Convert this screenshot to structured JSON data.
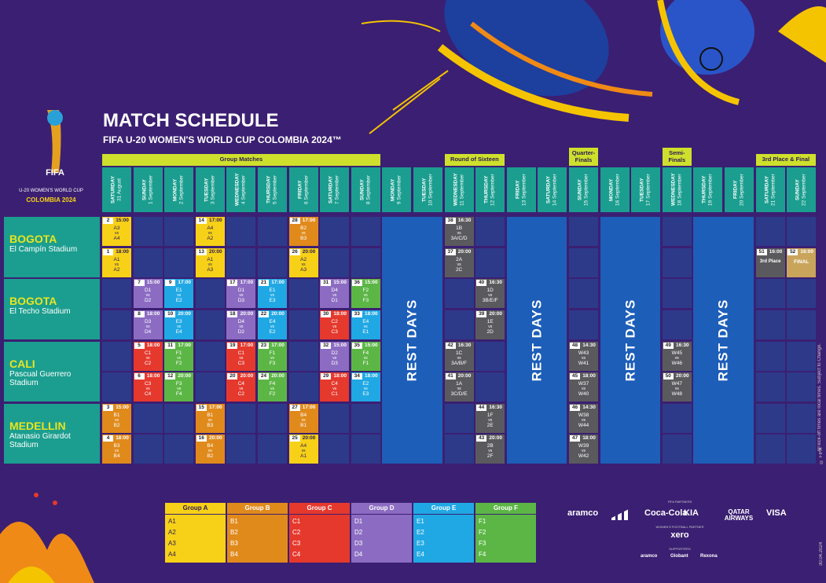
{
  "logo": {
    "brand": "FIFA",
    "line1": "U-20 WOMEN'S WORLD CUP",
    "line2": "COLOMBIA 2024"
  },
  "header": {
    "title": "MATCH SCHEDULE",
    "subtitle": "FIFA U-20 WOMEN'S WORLD CUP COLOMBIA 2024™"
  },
  "phases": [
    "Group Matches",
    "Round of Sixteen",
    "Quarter-Finals",
    "Semi-Finals",
    "3rd Place & Final"
  ],
  "venues": [
    {
      "city": "BOGOTA",
      "stadium": "El Campín Stadium"
    },
    {
      "city": "BOGOTA",
      "stadium": "El Techo Stadium"
    },
    {
      "city": "CALI",
      "stadium": "Pascual Guerrero Stadium"
    },
    {
      "city": "MEDELLIN",
      "stadium": "Atanasio Girardot Stadium"
    }
  ],
  "vs": "vs",
  "rest_label": "REST DAYS",
  "days": [
    {
      "weekday": "SATURDAY",
      "date": "31 August",
      "slots": [
        {
          "no": "2",
          "time": "15:00",
          "home": "A3",
          "away": "A4",
          "color": "#f7d117"
        },
        {
          "no": "1",
          "time": "18:00",
          "home": "A1",
          "away": "A2",
          "color": "#f7d117"
        },
        null,
        null,
        null,
        null,
        {
          "no": "3",
          "time": "15:00",
          "home": "B1",
          "away": "B2",
          "color": "#e08a1c"
        },
        {
          "no": "4",
          "time": "18:00",
          "home": "B3",
          "away": "B4",
          "color": "#e08a1c"
        }
      ]
    },
    {
      "weekday": "SUNDAY",
      "date": "1 September",
      "slots": [
        null,
        null,
        {
          "no": "7",
          "time": "15:00",
          "home": "D1",
          "away": "D2",
          "color": "#8c6cc2"
        },
        {
          "no": "8",
          "time": "18:00",
          "home": "D3",
          "away": "D4",
          "color": "#8c6cc2"
        },
        {
          "no": "5",
          "time": "18:00",
          "home": "C1",
          "away": "C2",
          "color": "#e5392d"
        },
        {
          "no": "6",
          "time": "18:00",
          "home": "C3",
          "away": "C4",
          "color": "#e5392d"
        },
        null,
        null
      ]
    },
    {
      "weekday": "MONDAY",
      "date": "2 September",
      "slots": [
        null,
        null,
        {
          "no": "9",
          "time": "17:00",
          "home": "E1",
          "away": "E2",
          "color": "#20a8e4"
        },
        {
          "no": "10",
          "time": "20:00",
          "home": "E3",
          "away": "E4",
          "color": "#20a8e4"
        },
        {
          "no": "11",
          "time": "17:00",
          "home": "F1",
          "away": "F2",
          "color": "#5cb646"
        },
        {
          "no": "12",
          "time": "20:00",
          "home": "F3",
          "away": "F4",
          "color": "#5cb646"
        },
        null,
        null
      ]
    },
    {
      "weekday": "TUESDAY",
      "date": "3 September",
      "slots": [
        {
          "no": "14",
          "time": "17:00",
          "home": "A4",
          "away": "A2",
          "color": "#f7d117"
        },
        {
          "no": "13",
          "time": "20:00",
          "home": "A1",
          "away": "A3",
          "color": "#f7d117"
        },
        null,
        null,
        null,
        null,
        {
          "no": "15",
          "time": "17:00",
          "home": "B1",
          "away": "B3",
          "color": "#e08a1c"
        },
        {
          "no": "16",
          "time": "20:00",
          "home": "B4",
          "away": "B2",
          "color": "#e08a1c"
        }
      ]
    },
    {
      "weekday": "WEDNESDAY",
      "date": "4 September",
      "slots": [
        null,
        null,
        {
          "no": "17",
          "time": "17:00",
          "home": "D1",
          "away": "D3",
          "color": "#8c6cc2"
        },
        {
          "no": "18",
          "time": "20:00",
          "home": "D4",
          "away": "D2",
          "color": "#8c6cc2"
        },
        {
          "no": "19",
          "time": "17:00",
          "home": "C1",
          "away": "C3",
          "color": "#e5392d"
        },
        {
          "no": "20",
          "time": "20:00",
          "home": "C4",
          "away": "C2",
          "color": "#e5392d"
        },
        null,
        null
      ]
    },
    {
      "weekday": "THURSDAY",
      "date": "5 September",
      "slots": [
        null,
        null,
        {
          "no": "21",
          "time": "17:00",
          "home": "E1",
          "away": "E3",
          "color": "#20a8e4"
        },
        {
          "no": "22",
          "time": "20:00",
          "home": "E4",
          "away": "E2",
          "color": "#20a8e4"
        },
        {
          "no": "23",
          "time": "17:00",
          "home": "F1",
          "away": "F3",
          "color": "#5cb646"
        },
        {
          "no": "24",
          "time": "20:00",
          "home": "F4",
          "away": "F2",
          "color": "#5cb646"
        },
        null,
        null
      ]
    },
    {
      "weekday": "FRIDAY",
      "date": "6 September",
      "slots": [
        {
          "no": "28",
          "time": "17:00",
          "home": "B2",
          "away": "B3",
          "color": "#e08a1c"
        },
        {
          "no": "26",
          "time": "20:00",
          "home": "A2",
          "away": "A3",
          "color": "#f7d117"
        },
        null,
        null,
        null,
        null,
        {
          "no": "27",
          "time": "17:00",
          "home": "B4",
          "away": "B1",
          "color": "#e08a1c"
        },
        {
          "no": "25",
          "time": "20:00",
          "home": "A4",
          "away": "A1",
          "color": "#f7d117"
        }
      ]
    },
    {
      "weekday": "SATURDAY",
      "date": "7 September",
      "slots": [
        null,
        null,
        {
          "no": "31",
          "time": "15:00",
          "home": "D4",
          "away": "D1",
          "color": "#8c6cc2"
        },
        {
          "no": "30",
          "time": "18:00",
          "home": "C2",
          "away": "C3",
          "color": "#e5392d"
        },
        {
          "no": "32",
          "time": "15:00",
          "home": "D2",
          "away": "D3",
          "color": "#8c6cc2"
        },
        {
          "no": "29",
          "time": "18:00",
          "home": "C4",
          "away": "C1",
          "color": "#e5392d"
        },
        null,
        null
      ]
    },
    {
      "weekday": "SUNDAY",
      "date": "8 September",
      "slots": [
        null,
        null,
        {
          "no": "36",
          "time": "15:00",
          "home": "F2",
          "away": "F3",
          "color": "#5cb646"
        },
        {
          "no": "33",
          "time": "18:00",
          "home": "E4",
          "away": "E1",
          "color": "#20a8e4"
        },
        {
          "no": "35",
          "time": "15:00",
          "home": "F4",
          "away": "F1",
          "color": "#5cb646"
        },
        {
          "no": "34",
          "time": "18:00",
          "home": "E2",
          "away": "E3",
          "color": "#20a8e4"
        },
        null,
        null
      ]
    },
    {
      "weekday": "MONDAY",
      "date": "9 September"
    },
    {
      "weekday": "TUESDAY",
      "date": "10 September"
    },
    {
      "weekday": "WEDNESDAY",
      "date": "11 September",
      "slots": [
        {
          "no": "38",
          "time": "16:30",
          "home": "1B",
          "away": "3A/C/D",
          "color": "#5a5a5e"
        },
        {
          "no": "37",
          "time": "20:00",
          "home": "2A",
          "away": "2C",
          "color": "#5a5a5e"
        },
        null,
        null,
        {
          "no": "42",
          "time": "16:30",
          "home": "1C",
          "away": "3A/B/F",
          "color": "#5a5a5e"
        },
        {
          "no": "41",
          "time": "20:00",
          "home": "1A",
          "away": "3C/D/E",
          "color": "#5a5a5e"
        },
        null,
        null
      ]
    },
    {
      "weekday": "THURSDAY",
      "date": "12 September",
      "slots": [
        null,
        null,
        {
          "no": "40",
          "time": "16:30",
          "home": "1D",
          "away": "3B/E/F",
          "color": "#5a5a5e"
        },
        {
          "no": "39",
          "time": "20:00",
          "home": "1E",
          "away": "2D",
          "color": "#5a5a5e"
        },
        null,
        null,
        {
          "no": "44",
          "time": "16:30",
          "home": "1F",
          "away": "2E",
          "color": "#5a5a5e"
        },
        {
          "no": "43",
          "time": "20:00",
          "home": "2B",
          "away": "2F",
          "color": "#5a5a5e"
        }
      ]
    },
    {
      "weekday": "FRIDAY",
      "date": "13 September"
    },
    {
      "weekday": "SATURDAY",
      "date": "14 September"
    },
    {
      "weekday": "SUNDAY",
      "date": "15 September",
      "slots": [
        null,
        null,
        null,
        null,
        {
          "no": "48",
          "time": "14:30",
          "home": "W43",
          "away": "W41",
          "color": "#5a5a5e"
        },
        {
          "no": "45",
          "time": "18:00",
          "home": "W37",
          "away": "W40",
          "color": "#5a5a5e"
        },
        {
          "no": "46",
          "time": "14:30",
          "home": "W38",
          "away": "W44",
          "color": "#5a5a5e"
        },
        {
          "no": "47",
          "time": "18:00",
          "home": "W39",
          "away": "W42",
          "color": "#5a5a5e"
        }
      ]
    },
    {
      "weekday": "MONDAY",
      "date": "16 September"
    },
    {
      "weekday": "TUESDAY",
      "date": "17 September"
    },
    {
      "weekday": "WEDNESDAY",
      "date": "18 September",
      "slots": [
        null,
        null,
        null,
        null,
        {
          "no": "49",
          "time": "16:30",
          "home": "W45",
          "away": "W46",
          "color": "#5a5a5e"
        },
        {
          "no": "50",
          "time": "20:00",
          "home": "W47",
          "away": "W48",
          "color": "#5a5a5e"
        },
        null,
        null
      ]
    },
    {
      "weekday": "THURSDAY",
      "date": "19 September"
    },
    {
      "weekday": "FRIDAY",
      "date": "20 September"
    },
    {
      "weekday": "SATURDAY",
      "date": "21 September",
      "slots": [
        null,
        {
          "no": "51",
          "time": "16:00",
          "label": "3rd Place",
          "color": "#5a5a5e"
        },
        null,
        null,
        null,
        null,
        null,
        null
      ]
    },
    {
      "weekday": "SUNDAY",
      "date": "22 September",
      "slots": [
        null,
        {
          "no": "52",
          "time": "16:00",
          "label": "FINAL",
          "color": "#c9a55c"
        },
        null,
        null,
        null,
        null,
        null,
        null
      ]
    }
  ],
  "groups": [
    {
      "name": "Group A",
      "color": "#f7d117",
      "teams": [
        "A1",
        "A2",
        "A3",
        "A4"
      ]
    },
    {
      "name": "Group B",
      "color": "#e08a1c",
      "teams": [
        "B1",
        "B2",
        "B3",
        "B4"
      ]
    },
    {
      "name": "Group C",
      "color": "#e5392d",
      "teams": [
        "C1",
        "C2",
        "C3",
        "C4"
      ]
    },
    {
      "name": "Group D",
      "color": "#8c6cc2",
      "teams": [
        "D1",
        "D2",
        "D3",
        "D4"
      ]
    },
    {
      "name": "Group E",
      "color": "#20a8e4",
      "teams": [
        "E1",
        "E2",
        "E3",
        "E4"
      ]
    },
    {
      "name": "Group F",
      "color": "#5cb646",
      "teams": [
        "F1",
        "F2",
        "F3",
        "F4"
      ]
    }
  ],
  "sponsors": {
    "partners_label": "FIFA PARTNERS",
    "partners": [
      "aramco",
      "Coca-Cola",
      "KIA",
      "QATAR AIRWAYS",
      "VISA"
    ],
    "womens_label": "WOMEN'S FOOTBALL PARTNER",
    "womens": "xero",
    "supporters_label": "SUPPORTERS",
    "supporters": [
      "aramco",
      "Globant",
      "Rexona"
    ]
  },
  "notes": {
    "disclaimer": "All kick-off times are local times. Subject to Change.",
    "copyright": "© FIFA",
    "date": "30.04.2024"
  }
}
